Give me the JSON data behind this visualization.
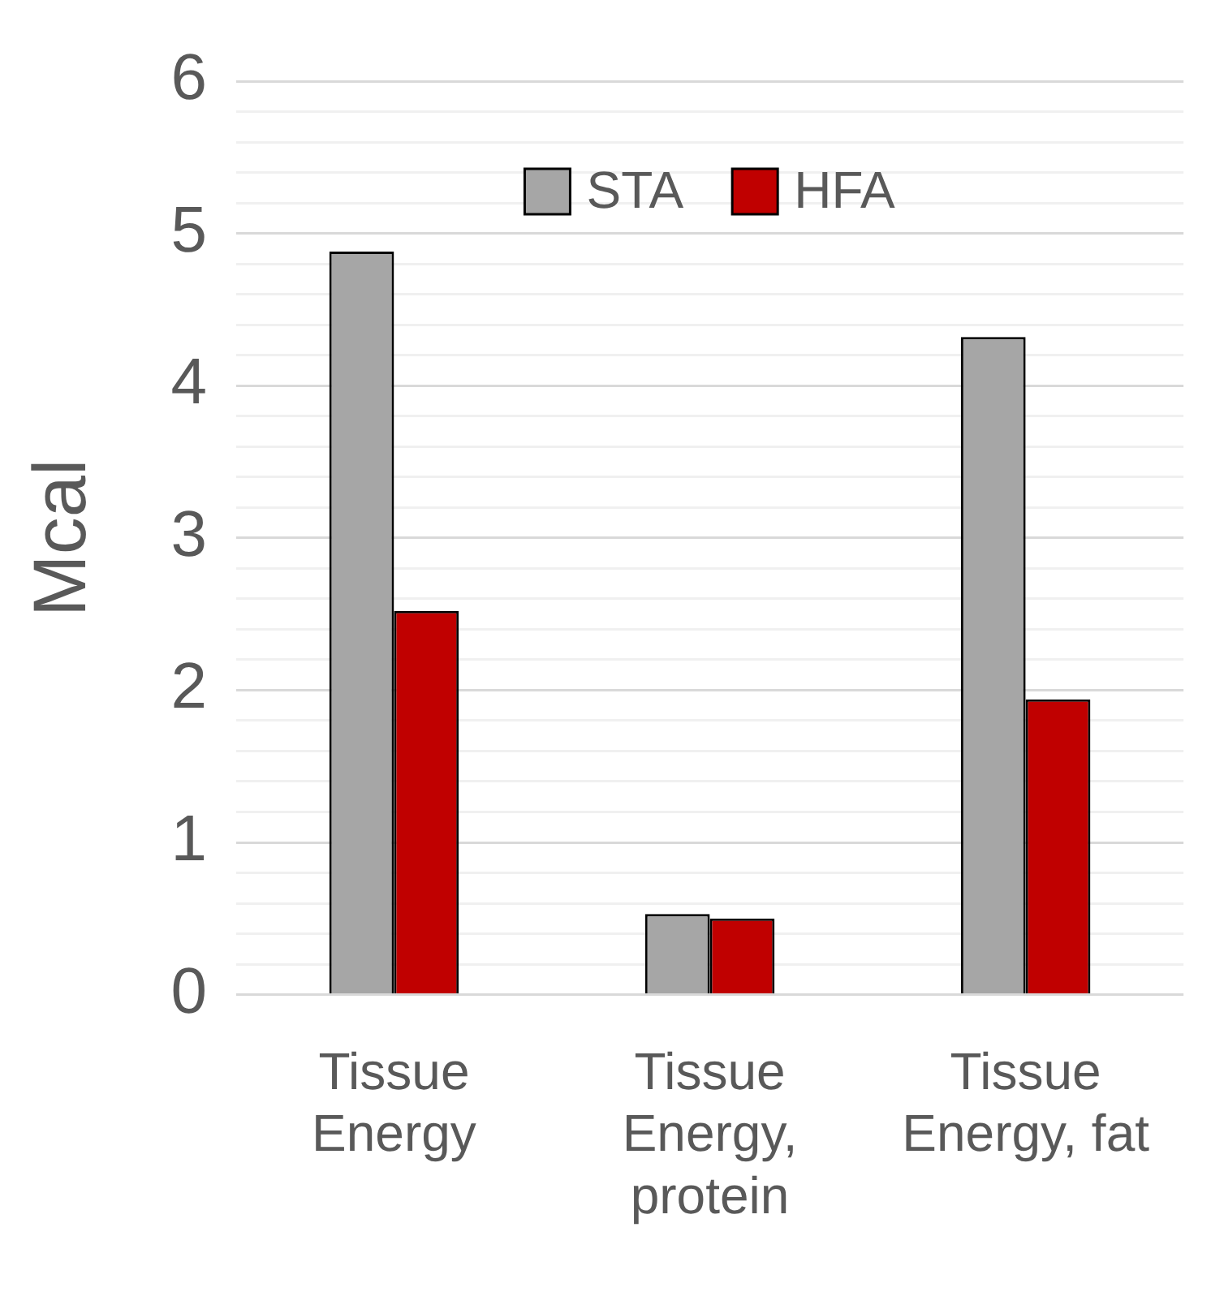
{
  "chart_data": {
    "type": "bar",
    "ylabel": "Mcal",
    "categories": [
      "Tissue Energy",
      "Tissue Energy, protein",
      "Tissue Energy, fat"
    ],
    "series": [
      {
        "name": "STA",
        "color": "#a6a6a6",
        "values": [
          4.88,
          0.53,
          4.32
        ]
      },
      {
        "name": "HFA",
        "color": "#c00000",
        "values": [
          2.52,
          0.5,
          1.94
        ]
      }
    ],
    "ylim": [
      0,
      6
    ],
    "yticks": [
      0,
      {
        "value": 0.2,
        "label": null
      },
      {
        "value": 0.4,
        "label": null
      },
      {
        "value": 0.6,
        "label": null
      },
      {
        "value": 0.8,
        "label": null
      },
      1,
      {
        "value": 1.2,
        "label": null
      },
      {
        "value": 1.4,
        "label": null
      },
      {
        "value": 1.6,
        "label": null
      },
      {
        "value": 1.8,
        "label": null
      },
      2,
      {
        "value": 2.2,
        "label": null
      },
      {
        "value": 2.4,
        "label": null
      },
      {
        "value": 2.6,
        "label": null
      },
      {
        "value": 2.8,
        "label": null
      },
      3,
      {
        "value": 3.2,
        "label": null
      },
      {
        "value": 3.4,
        "label": null
      },
      {
        "value": 3.6,
        "label": null
      },
      {
        "value": 3.8,
        "label": null
      },
      4,
      {
        "value": 4.2,
        "label": null
      },
      {
        "value": 4.4,
        "label": null
      },
      {
        "value": 4.6,
        "label": null
      },
      {
        "value": 4.8,
        "label": null
      },
      5,
      {
        "value": 5.2,
        "label": null
      },
      {
        "value": 5.4,
        "label": null
      },
      {
        "value": 5.6,
        "label": null
      },
      {
        "value": 5.8,
        "label": null
      },
      6
    ],
    "grid": "y",
    "legend": "top"
  }
}
